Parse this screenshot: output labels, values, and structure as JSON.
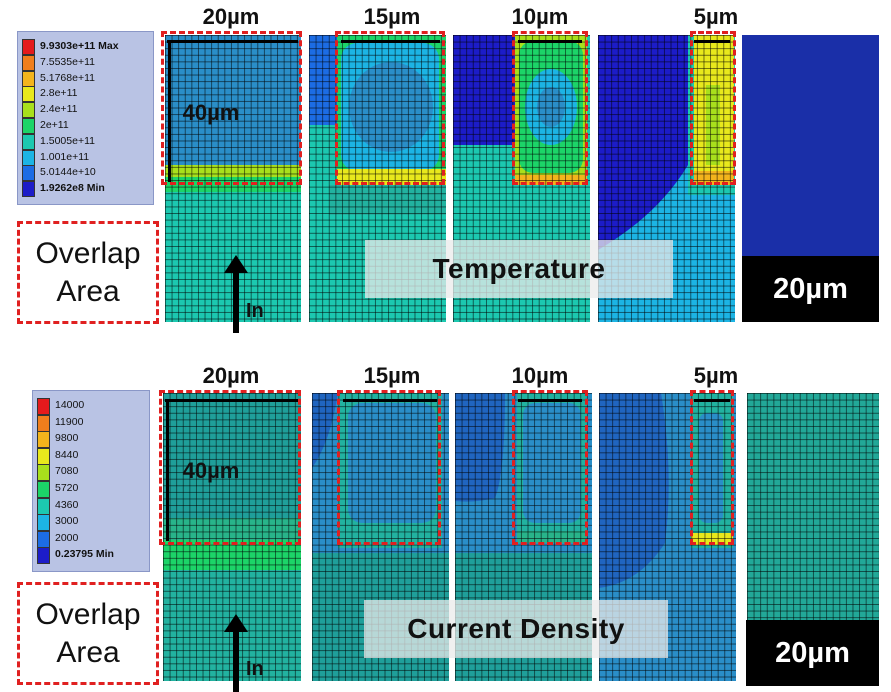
{
  "panels": [
    {
      "id": "temperature",
      "banner_text": "Temperature",
      "scale_bar_label": "20µm",
      "overlap_label": [
        "Overlap",
        "Area"
      ],
      "in_label": "In",
      "height_label": "40µm",
      "width_labels": [
        "20µm",
        "15µm",
        "10µm",
        "5µm"
      ],
      "legend": [
        {
          "label": "9.9303e+11 Max",
          "color": "#e41a1c",
          "bold": true
        },
        {
          "label": "7.5535e+11",
          "color": "#f07e1c",
          "bold": false
        },
        {
          "label": "5.1768e+11",
          "color": "#f3b41c",
          "bold": false
        },
        {
          "label": "2.8e+11",
          "color": "#e8e81c",
          "bold": false
        },
        {
          "label": "2.4e+11",
          "color": "#a8e01c",
          "bold": false
        },
        {
          "label": "2e+11",
          "color": "#1cd468",
          "bold": false
        },
        {
          "label": "1.5005e+11",
          "color": "#1cc8b0",
          "bold": false
        },
        {
          "label": "1.001e+11",
          "color": "#1cb4e4",
          "bold": false
        },
        {
          "label": "5.0144e+10",
          "color": "#1c6ce4",
          "bold": false
        },
        {
          "label": "1.9262e8 Min",
          "color": "#1c1cc8",
          "bold": true
        }
      ]
    },
    {
      "id": "current-density",
      "banner_text": "Current Density",
      "scale_bar_label": "20µm",
      "overlap_label": [
        "Overlap",
        "Area"
      ],
      "in_label": "In",
      "height_label": "40µm",
      "width_labels": [
        "20µm",
        "15µm",
        "10µm",
        "5µm"
      ],
      "legend": [
        {
          "label": "14000",
          "color": "#e41a1c",
          "bold": false
        },
        {
          "label": "11900",
          "color": "#f07e1c",
          "bold": false
        },
        {
          "label": "9800",
          "color": "#f3b41c",
          "bold": false
        },
        {
          "label": "8440",
          "color": "#e8e81c",
          "bold": false
        },
        {
          "label": "7080",
          "color": "#a8e01c",
          "bold": false
        },
        {
          "label": "5720",
          "color": "#1cd468",
          "bold": false
        },
        {
          "label": "4360",
          "color": "#1cc8b0",
          "bold": false
        },
        {
          "label": "3000",
          "color": "#1cb4e4",
          "bold": false
        },
        {
          "label": "2000",
          "color": "#1c6ce4",
          "bold": false
        },
        {
          "label": "0.23795 Min",
          "color": "#1c1cc8",
          "bold": true
        }
      ]
    }
  ]
}
